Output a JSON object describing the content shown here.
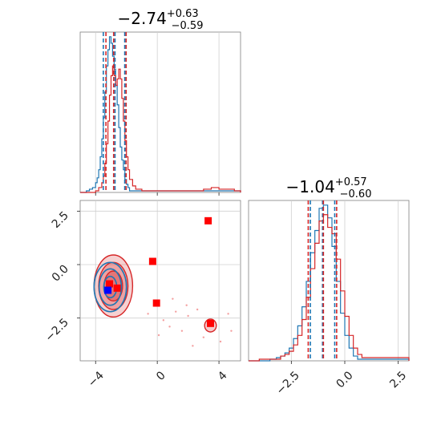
{
  "colors": {
    "blue": "#1f77b4",
    "red": "#d62728",
    "marker_red": "#ff0000",
    "marker_blue": "#0000ff",
    "frame": "#7f7f7f",
    "grid": "#d0d0d0"
  },
  "chart_data": [
    {
      "type": "histogram",
      "panel": "top-left",
      "title_main": "−2.74",
      "title_sup": "+0.63",
      "title_sub": "−0.59",
      "xlim": [
        -5,
        5.4
      ],
      "quantile_lines": {
        "blue": [
          -3.5,
          -2.74,
          -2.11
        ],
        "red": [
          -3.33,
          -2.83,
          -2.02
        ]
      },
      "series": [
        {
          "name": "",
          "color": "blue",
          "x": [
            -5.0,
            -4.6,
            -4.4,
            -4.2,
            -4.0,
            -3.9,
            -3.8,
            -3.7,
            -3.6,
            -3.5,
            -3.4,
            -3.3,
            -3.2,
            -3.1,
            -3.0,
            -2.9,
            -2.8,
            -2.7,
            -2.6,
            -2.5,
            -2.4,
            -2.3,
            -2.2,
            -2.1,
            -2.0,
            -1.9,
            -1.8,
            5.4
          ],
          "y": [
            0,
            1,
            2,
            3,
            6,
            9,
            14,
            22,
            33,
            46,
            62,
            78,
            88,
            96,
            92,
            84,
            76,
            66,
            54,
            40,
            28,
            20,
            14,
            8,
            5,
            3,
            1,
            0
          ]
        },
        {
          "name": "",
          "color": "red",
          "x": [
            -5.0,
            -4.4,
            -4.0,
            -3.8,
            -3.6,
            -3.5,
            -3.4,
            -3.3,
            -3.2,
            -3.1,
            -3.0,
            -2.9,
            -2.8,
            -2.7,
            -2.6,
            -2.5,
            -2.4,
            -2.3,
            -2.2,
            -2.1,
            -2.0,
            -1.9,
            -1.8,
            -1.6,
            -1.4,
            -1.0,
            0.0,
            1.0,
            2.0,
            3.0,
            3.5,
            4.0,
            5.0,
            5.4
          ],
          "y": [
            0,
            0,
            1,
            3,
            6,
            10,
            18,
            30,
            44,
            60,
            72,
            78,
            72,
            66,
            70,
            76,
            70,
            58,
            44,
            32,
            22,
            14,
            8,
            4,
            2,
            1,
            1,
            1,
            1,
            2,
            3,
            2,
            1,
            0
          ]
        }
      ]
    },
    {
      "type": "histogram",
      "panel": "bottom-right",
      "title_main": "−1.04",
      "title_sup": "+0.57",
      "title_sub": "−0.60",
      "xlim": [
        -4.5,
        3.0
      ],
      "xticks": [
        -2.5,
        0.0,
        2.5
      ],
      "xticklabels": [
        "−2.5",
        "0.0",
        "2.5"
      ],
      "quantile_lines": {
        "blue": [
          -1.61,
          -1.04,
          -0.47
        ],
        "red": [
          -1.71,
          -1.0,
          -0.38
        ]
      },
      "series": [
        {
          "name": "",
          "color": "blue",
          "x": [
            -4.5,
            -4.0,
            -3.5,
            -3.2,
            -3.0,
            -2.8,
            -2.6,
            -2.4,
            -2.2,
            -2.0,
            -1.8,
            -1.6,
            -1.4,
            -1.2,
            -1.0,
            -0.8,
            -0.6,
            -0.4,
            -0.2,
            0.0,
            0.2,
            0.4,
            0.6,
            3.0
          ],
          "y": [
            0,
            0,
            1,
            2,
            3,
            5,
            8,
            14,
            22,
            34,
            50,
            68,
            82,
            96,
            98,
            90,
            72,
            50,
            30,
            16,
            8,
            3,
            1,
            0
          ]
        },
        {
          "name": "",
          "color": "red",
          "x": [
            -4.5,
            -4.0,
            -3.5,
            -3.0,
            -2.8,
            -2.6,
            -2.4,
            -2.2,
            -2.0,
            -1.8,
            -1.6,
            -1.4,
            -1.2,
            -1.0,
            -0.8,
            -0.6,
            -0.4,
            -0.2,
            0.0,
            0.2,
            0.4,
            0.6,
            0.8,
            3.0
          ],
          "y": [
            0,
            1,
            1,
            3,
            4,
            6,
            10,
            16,
            26,
            40,
            58,
            74,
            88,
            92,
            84,
            80,
            64,
            44,
            28,
            16,
            8,
            4,
            2,
            0
          ]
        }
      ]
    },
    {
      "type": "scatter",
      "panel": "bottom-left",
      "xlim": [
        -5,
        5.4
      ],
      "ylim": [
        -4.5,
        3.0
      ],
      "xticks": [
        -4,
        0,
        4
      ],
      "xticklabels": [
        "−4",
        "0",
        "4"
      ],
      "yticks": [
        -2.5,
        0.0,
        2.5
      ],
      "yticklabels": [
        "−2.5",
        "0.0",
        "2.5"
      ],
      "red_contours": [
        {
          "cx": -2.85,
          "cy": -1.0,
          "rx": 1.25,
          "ry": 1.45,
          "opacity": 0.35
        },
        {
          "cx": -2.85,
          "cy": -1.0,
          "rx": 0.95,
          "ry": 1.1,
          "opacity": 0.45
        },
        {
          "cx": -2.85,
          "cy": -1.0,
          "rx": 0.6,
          "ry": 0.7,
          "opacity": 0.6
        },
        {
          "cx": 3.45,
          "cy": -2.85,
          "rx": 0.38,
          "ry": 0.3,
          "opacity": 0.4
        }
      ],
      "blue_contours": [
        {
          "cx": -3.05,
          "cy": -1.05,
          "rx": 1.05,
          "ry": 1.15
        },
        {
          "cx": -3.05,
          "cy": -1.05,
          "rx": 0.72,
          "ry": 0.85
        },
        {
          "cx": -3.05,
          "cy": -1.05,
          "rx": 0.42,
          "ry": 0.5
        }
      ],
      "red_markers": [
        {
          "x": 3.3,
          "y": 2.05
        },
        {
          "x": -0.3,
          "y": 0.15
        },
        {
          "x": -0.05,
          "y": -1.8
        },
        {
          "x": 3.45,
          "y": -2.75
        },
        {
          "x": -3.1,
          "y": -0.9
        },
        {
          "x": -2.6,
          "y": -1.1
        }
      ],
      "blue_markers": [
        {
          "x": -3.2,
          "y": -1.2
        }
      ],
      "faint_points": [
        {
          "x": 1.2,
          "y": -2.2
        },
        {
          "x": 2.0,
          "y": -2.4
        },
        {
          "x": 0.8,
          "y": -2.9
        },
        {
          "x": 1.6,
          "y": -3.1
        },
        {
          "x": 2.6,
          "y": -2.1
        },
        {
          "x": 4.1,
          "y": -3.6
        },
        {
          "x": 3.0,
          "y": -3.4
        },
        {
          "x": 0.4,
          "y": -2.6
        },
        {
          "x": 4.6,
          "y": -2.3
        },
        {
          "x": 1.0,
          "y": -1.6
        },
        {
          "x": -0.6,
          "y": -2.3
        },
        {
          "x": 2.3,
          "y": -3.8
        },
        {
          "x": 4.8,
          "y": -3.1
        },
        {
          "x": 1.9,
          "y": -1.9
        },
        {
          "x": 0.1,
          "y": -3.3
        }
      ]
    }
  ]
}
